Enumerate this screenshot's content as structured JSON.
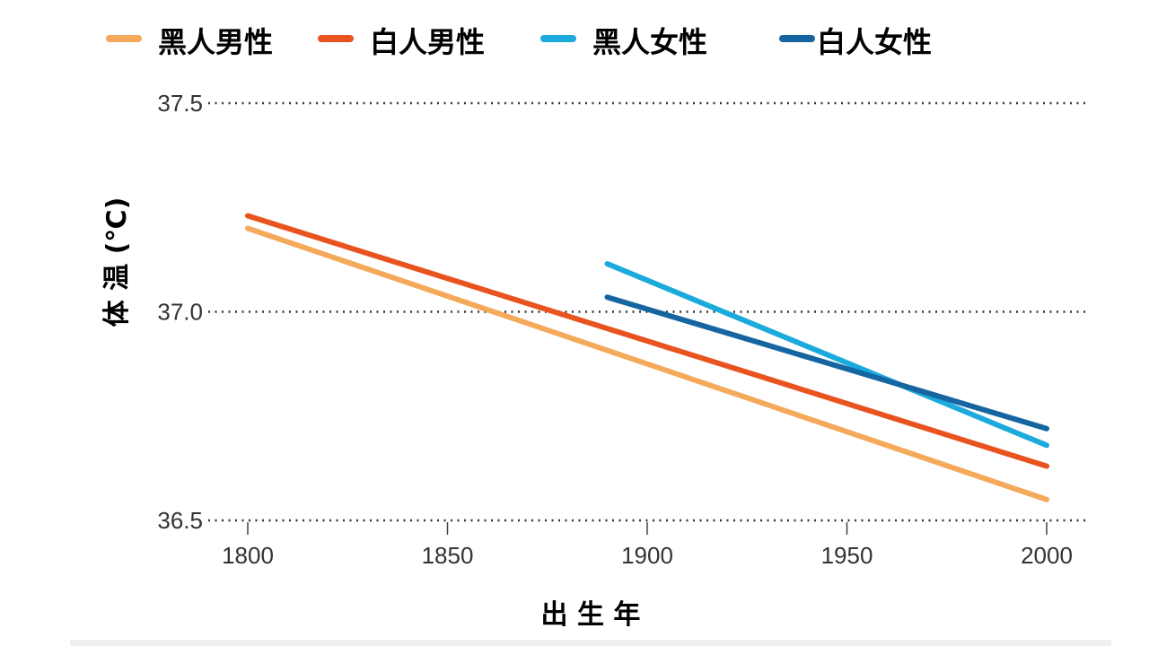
{
  "chart_data": {
    "type": "line",
    "title": "",
    "xlabel": "出 生 年",
    "ylabel": "体 温 (℃)",
    "xlim": [
      1800,
      2000
    ],
    "ylim": [
      36.5,
      37.5
    ],
    "xticks": [
      1800,
      1850,
      1900,
      1950,
      2000
    ],
    "xtick_labels": [
      "1800",
      "1850",
      "1900",
      "1950",
      "2000"
    ],
    "yticks": [
      36.5,
      37.0,
      37.5
    ],
    "ytick_labels": [
      "36.5",
      "37.0",
      "37.5"
    ],
    "grid": "horizontal dotted",
    "legend_placement": "top",
    "series": [
      {
        "name": "黑人男性",
        "color": "#F5A95B",
        "x": [
          1800,
          2000
        ],
        "y": [
          37.2,
          36.55
        ]
      },
      {
        "name": "白人男性",
        "color": "#E8531F",
        "x": [
          1800,
          2000
        ],
        "y": [
          37.23,
          36.63
        ]
      },
      {
        "name": "黑人女性",
        "color": "#1BAADC",
        "x": [
          1890,
          2000
        ],
        "y": [
          37.115,
          36.68
        ]
      },
      {
        "name": "白人女性",
        "color": "#1565A0",
        "x": [
          1890,
          2000
        ],
        "y": [
          37.035,
          36.72
        ]
      }
    ]
  }
}
